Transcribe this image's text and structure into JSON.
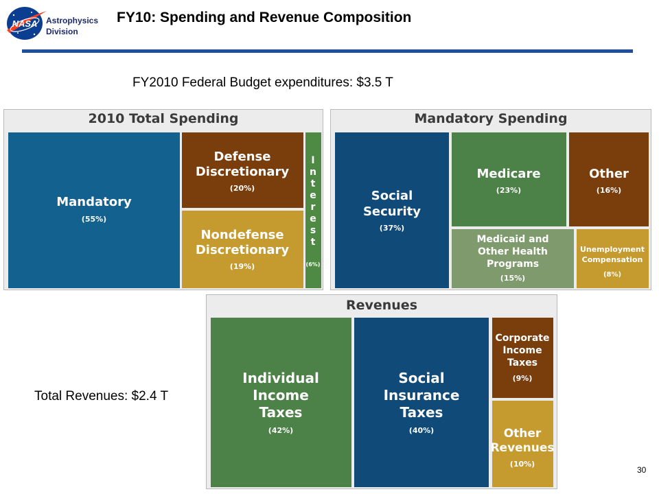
{
  "header": {
    "logo_text": "NASA",
    "division_line1": "Astrophysics",
    "division_line2": "Division",
    "title": "FY10: Spending and Revenue Composition",
    "rule_color": "#1f4e9c"
  },
  "subtitle": "FY2010 Federal Budget expenditures: $3.5 T",
  "total_revenues": "Total Revenues: $2.4 T",
  "page_number": "30",
  "chart_data": [
    {
      "type": "treemap",
      "title": "2010 Total Spending",
      "items": [
        {
          "label": "Mandatory",
          "value": 55,
          "pct_label": "(55%)",
          "color": "#13618f"
        },
        {
          "label": "Defense Discretionary",
          "value": 20,
          "pct_label": "(20%)",
          "color": "#7a3d0c"
        },
        {
          "label": "Nondefense Discretionary",
          "value": 19,
          "pct_label": "(19%)",
          "color": "#c59a2f"
        },
        {
          "label": "Interest",
          "value": 6,
          "pct_label": "(6%)",
          "color": "#4f8a45"
        }
      ]
    },
    {
      "type": "treemap",
      "title": "Mandatory Spending",
      "items": [
        {
          "label": "Social Security",
          "value": 37,
          "pct_label": "(37%)",
          "color": "#0f4a78"
        },
        {
          "label": "Medicare",
          "value": 23,
          "pct_label": "(23%)",
          "color": "#4c8248"
        },
        {
          "label": "Other",
          "value": 16,
          "pct_label": "(16%)",
          "color": "#7a3d0c"
        },
        {
          "label": "Medicaid and Other Health Programs",
          "value": 15,
          "pct_label": "(15%)",
          "color": "#7f9a6c"
        },
        {
          "label": "Unemployment Compensation",
          "value": 8,
          "pct_label": "(8%)",
          "color": "#c59a2f"
        }
      ]
    },
    {
      "type": "treemap",
      "title": "Revenues",
      "items": [
        {
          "label": "Individual Income Taxes",
          "value": 42,
          "pct_label": "(42%)",
          "color": "#4c8248"
        },
        {
          "label": "Social Insurance Taxes",
          "value": 40,
          "pct_label": "(40%)",
          "color": "#0f4a78"
        },
        {
          "label": "Corporate Income Taxes",
          "value": 9,
          "pct_label": "(9%)",
          "color": "#7a3d0c"
        },
        {
          "label": "Other Revenues",
          "value": 10,
          "pct_label": "(10%)",
          "color": "#c59a2f"
        }
      ]
    }
  ]
}
